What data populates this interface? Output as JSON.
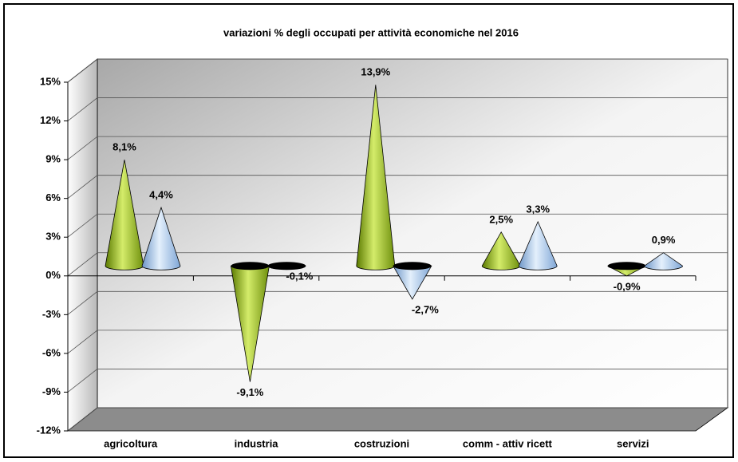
{
  "chart_data": {
    "type": "cone",
    "title": "variazioni % degli occupati per attività economiche nel 2016",
    "categories": [
      "agricoltura",
      "industria",
      "costruzioni",
      "comm - attiv ricett",
      "servizi"
    ],
    "series": [
      {
        "color": "#9cc21e",
        "values": [
          8.1,
          -9.1,
          13.9,
          2.5,
          -0.9
        ],
        "value_labels": [
          "8,1%",
          "-9,1%",
          "13,9%",
          "2,5%",
          "-0,9%"
        ]
      },
      {
        "color": "#9ec3ec",
        "values": [
          4.4,
          -0.1,
          -2.7,
          3.3,
          0.9
        ],
        "value_labels": [
          "4,4%",
          "-0,1%",
          "-2,7%",
          "3,3%",
          "0,9%"
        ]
      }
    ],
    "ylim": [
      -12,
      15
    ],
    "yticks": [
      {
        "value": -12,
        "label": "-12%"
      },
      {
        "value": -9,
        "label": "-9%"
      },
      {
        "value": -6,
        "label": "-6%"
      },
      {
        "value": -3,
        "label": "-3%"
      },
      {
        "value": 0,
        "label": "0%"
      },
      {
        "value": 3,
        "label": "3%"
      },
      {
        "value": 6,
        "label": "6%"
      },
      {
        "value": 9,
        "label": "9%"
      },
      {
        "value": 12,
        "label": "12%"
      },
      {
        "value": 15,
        "label": "15%"
      }
    ],
    "grid": true
  }
}
